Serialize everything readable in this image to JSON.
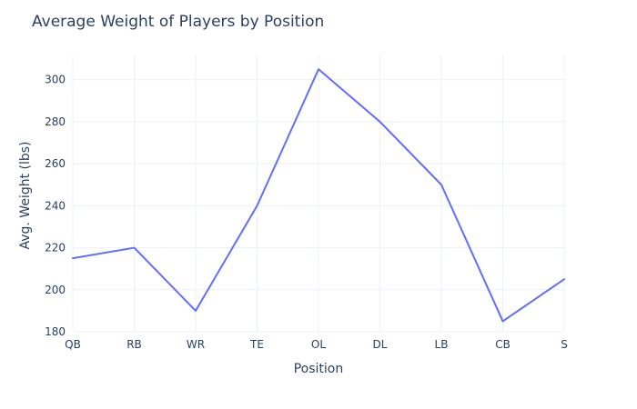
{
  "chart_data": {
    "type": "line",
    "title": "Average Weight of Players by Position",
    "xlabel": "Position",
    "ylabel": "Avg. Weight (lbs)",
    "categories": [
      "QB",
      "RB",
      "WR",
      "TE",
      "OL",
      "DL",
      "LB",
      "CB",
      "S"
    ],
    "series": [
      {
        "values": [
          215,
          220,
          190,
          240,
          305,
          280,
          250,
          185,
          205
        ],
        "color": "#636efa"
      }
    ],
    "ylim": [
      180,
      312
    ],
    "yticks": [
      180,
      200,
      220,
      240,
      260,
      280,
      300
    ],
    "grid": true,
    "background_color": "#ffffff",
    "grid_color": "#ebf0f8",
    "text_color": "#2a3f5f"
  }
}
